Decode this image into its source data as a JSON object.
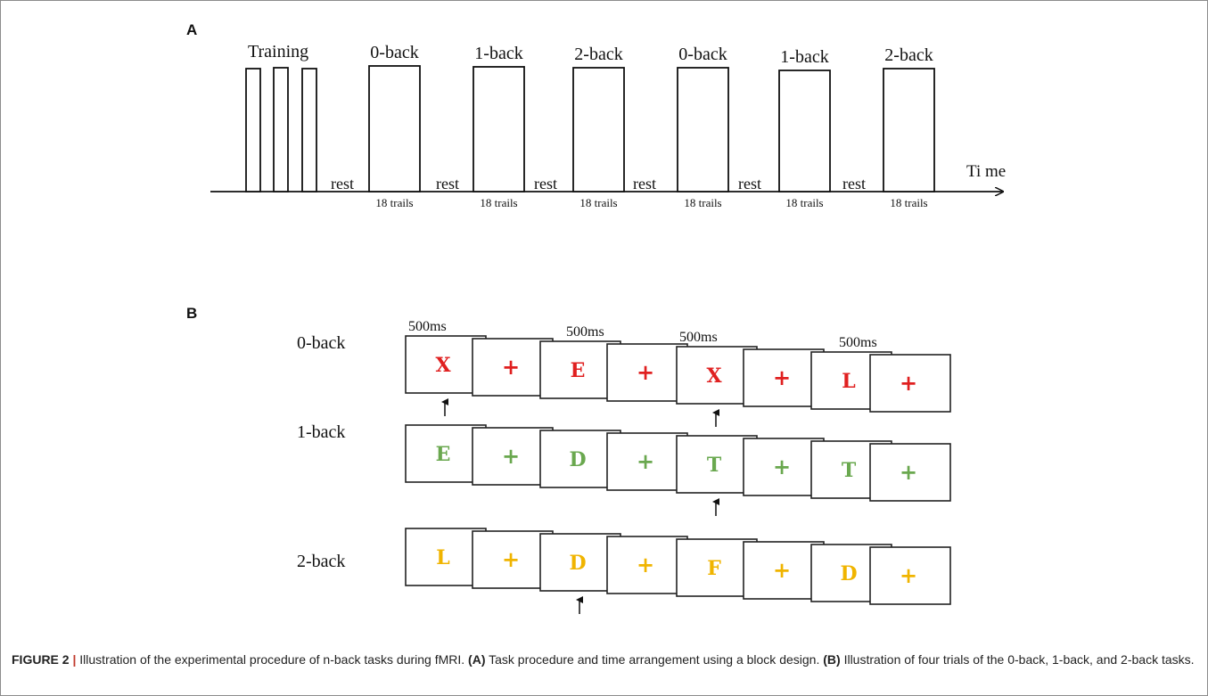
{
  "figure": {
    "panel_a_label": "A",
    "panel_b_label": "B",
    "caption": {
      "figure_number": "FIGURE 2",
      "separator": "|",
      "intro": "Illustration of the experimental procedure of n-back tasks during fMRI.",
      "part_a_tag": "(A)",
      "part_a_text": "Task procedure and time arrangement using a block design.",
      "part_b_tag": "(B)",
      "part_b_text": "Illustration of four trials of the 0-back, 1-back, and 2-back tasks."
    }
  },
  "timeline": {
    "training_label": "Training",
    "time_label": "Ti me",
    "rest_label": "rest",
    "trials_label": "18 trails",
    "blocks": [
      "0-back",
      "1-back",
      "2-back",
      "0-back",
      "1-back",
      "2-back"
    ]
  },
  "trials": {
    "duration_label": "500ms",
    "rows": [
      {
        "label": "0-back",
        "color": "#e02020",
        "stimuli": [
          "X",
          "+",
          "E",
          "+",
          "X",
          "+",
          "L",
          "+"
        ],
        "targets": [
          0,
          4
        ]
      },
      {
        "label": "1-back",
        "color": "#6aa84f",
        "stimuli": [
          "E",
          "+",
          "D",
          "+",
          "T",
          "+",
          "T",
          "+"
        ],
        "targets": [
          4
        ]
      },
      {
        "label": "2-back",
        "color": "#f0b400",
        "stimuli": [
          "L",
          "+",
          "D",
          "+",
          "F",
          "+",
          "D",
          "+"
        ],
        "targets": [
          2
        ]
      }
    ]
  }
}
